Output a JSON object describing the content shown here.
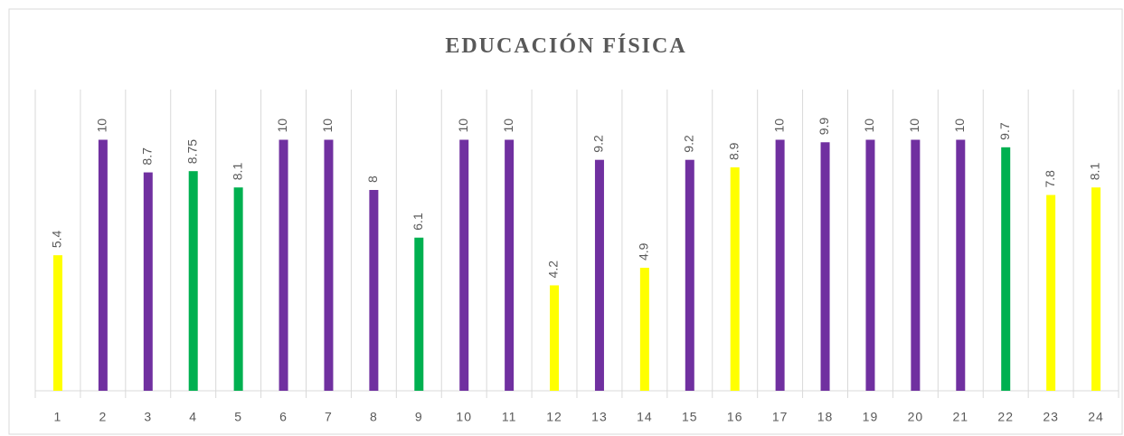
{
  "chart_data": {
    "type": "bar",
    "title": "EDUCACIÓN FÍSICA",
    "categories": [
      "1",
      "2",
      "3",
      "4",
      "5",
      "6",
      "7",
      "8",
      "9",
      "10",
      "11",
      "12",
      "13",
      "14",
      "15",
      "16",
      "17",
      "18",
      "19",
      "20",
      "21",
      "22",
      "23",
      "24"
    ],
    "values": [
      5.4,
      10,
      8.7,
      8.75,
      8.1,
      10,
      10,
      8,
      6.1,
      10,
      10,
      4.2,
      9.2,
      4.9,
      9.2,
      8.9,
      10,
      9.9,
      10,
      10,
      10,
      9.7,
      7.8,
      8.1
    ],
    "colors": [
      "#ffff00",
      "#7030a0",
      "#7030a0",
      "#00b050",
      "#00b050",
      "#7030a0",
      "#7030a0",
      "#7030a0",
      "#00b050",
      "#7030a0",
      "#7030a0",
      "#ffff00",
      "#7030a0",
      "#ffff00",
      "#7030a0",
      "#ffff00",
      "#7030a0",
      "#7030a0",
      "#7030a0",
      "#7030a0",
      "#7030a0",
      "#00b050",
      "#ffff00",
      "#ffff00"
    ],
    "ylim": [
      0,
      12
    ]
  }
}
